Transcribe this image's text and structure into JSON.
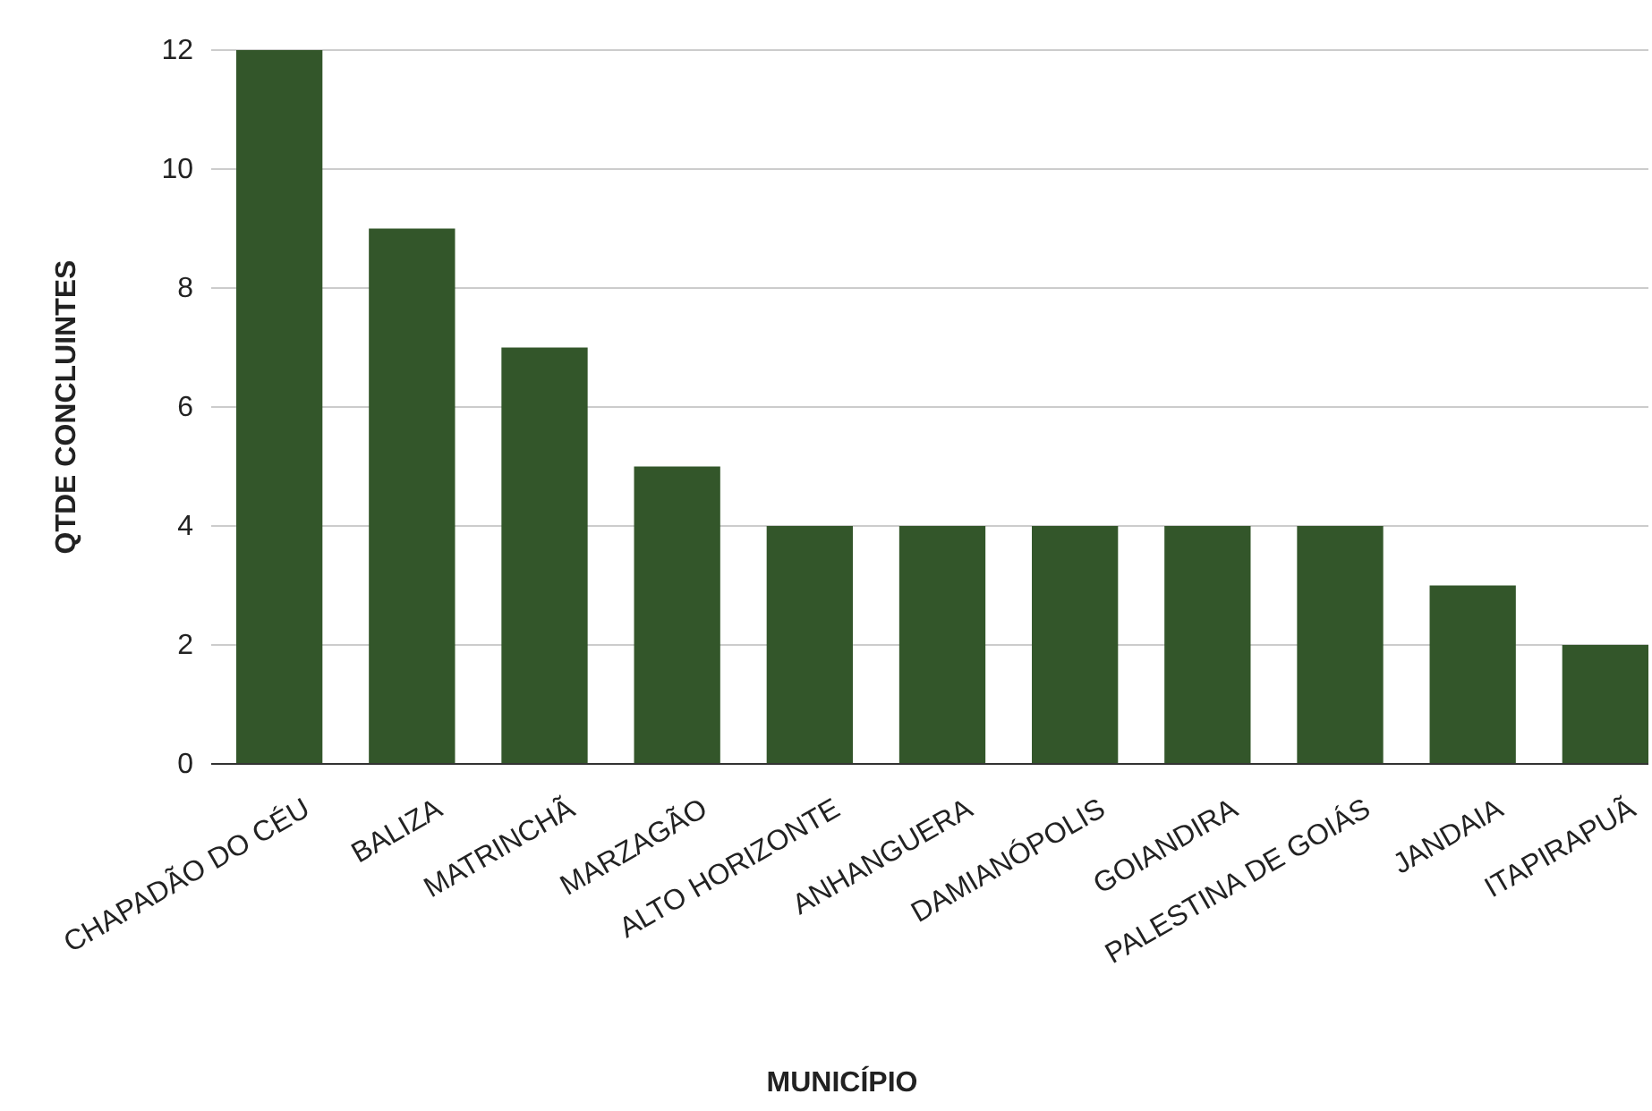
{
  "chart_data": {
    "type": "bar",
    "xlabel": "MUNICÍPIO",
    "ylabel": "QTDE CONCLUINTES",
    "categories": [
      "CHAPADÃO DO CÉU",
      "BALIZA",
      "MATRINCHÃ",
      "MARZAGÃO",
      "ALTO HORIZONTE",
      "ANHANGUERA",
      "DAMIANÓPOLIS",
      "GOIANDIRA",
      "PALESTINA DE GOIÁS",
      "JANDAIA",
      "ITAPIRAPUÃ"
    ],
    "values": [
      12,
      9,
      7,
      5,
      4,
      4,
      4,
      4,
      4,
      3,
      2
    ],
    "color": "#33562a",
    "ylim": [
      0,
      12
    ],
    "yticks": [
      0,
      2,
      4,
      6,
      8,
      10,
      12
    ],
    "grid": "y"
  }
}
